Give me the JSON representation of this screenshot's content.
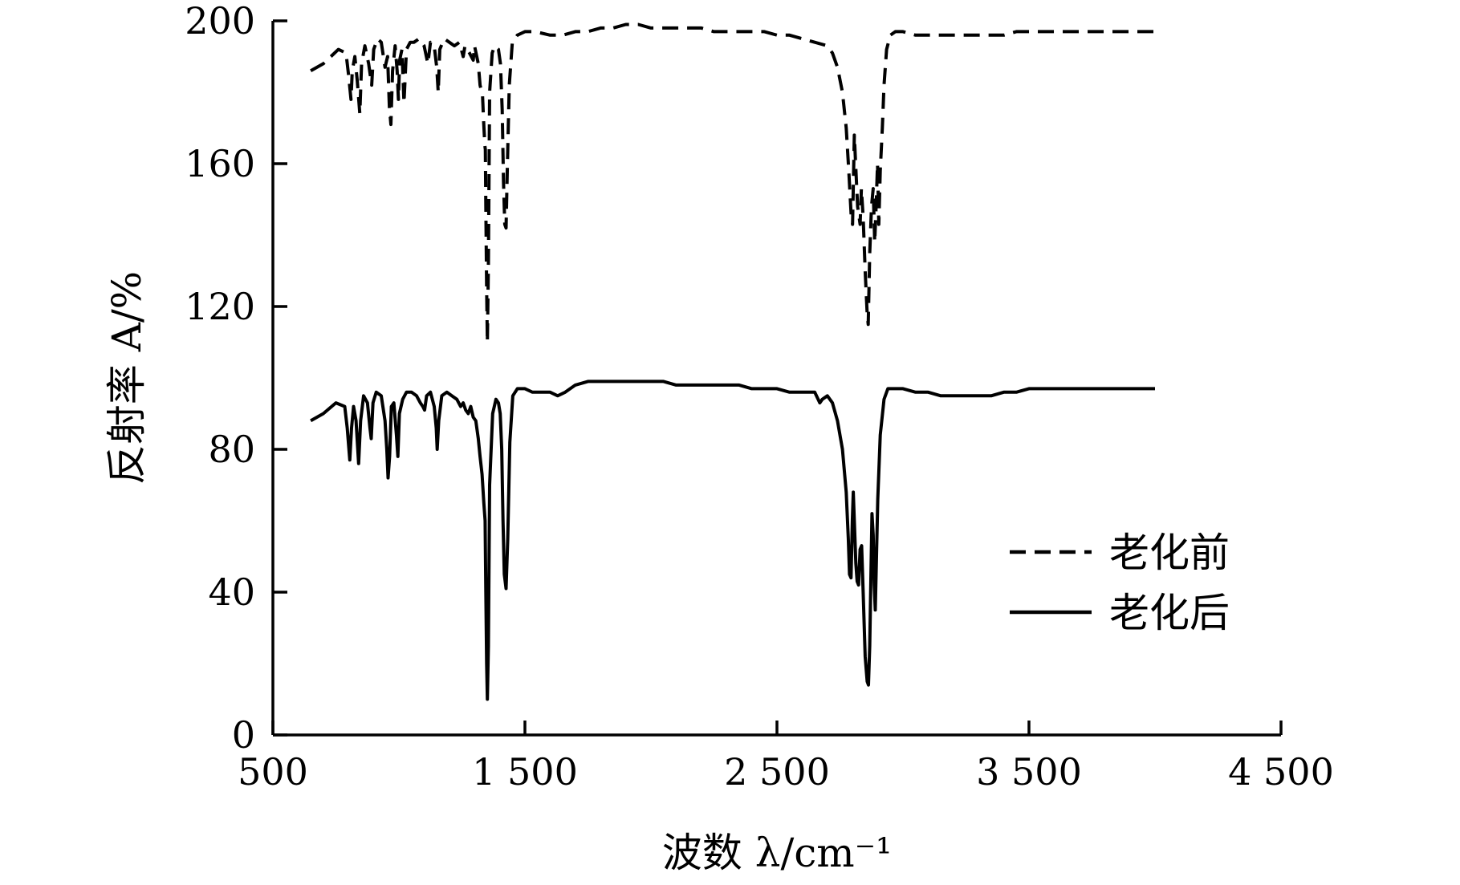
{
  "chart_data": {
    "type": "line",
    "xlabel": "波数 λ/cm⁻¹",
    "ylabel": "反射率 A/%",
    "xlim": [
      500,
      4500
    ],
    "ylim": [
      0,
      200
    ],
    "xticks": [
      500,
      1500,
      2500,
      3500,
      4500
    ],
    "xtick_labels": [
      "500",
      "1 500",
      "2 500",
      "3 500",
      "4 500"
    ],
    "yticks": [
      0,
      40,
      80,
      120,
      160,
      200
    ],
    "ytick_labels": [
      "0",
      "40",
      "80",
      "120",
      "160",
      "200"
    ],
    "grid": false,
    "legend_position": "lower-right",
    "series": [
      {
        "name": "老化前",
        "style": "dashed",
        "color": "#000000",
        "points": [
          [
            650,
            186
          ],
          [
            700,
            188
          ],
          [
            760,
            192
          ],
          [
            790,
            191
          ],
          [
            800,
            185
          ],
          [
            810,
            178
          ],
          [
            815,
            186
          ],
          [
            825,
            190
          ],
          [
            835,
            183
          ],
          [
            845,
            174
          ],
          [
            852,
            188
          ],
          [
            865,
            193
          ],
          [
            880,
            188
          ],
          [
            892,
            182
          ],
          [
            900,
            192
          ],
          [
            915,
            195
          ],
          [
            930,
            194
          ],
          [
            945,
            187
          ],
          [
            955,
            190
          ],
          [
            962,
            176
          ],
          [
            968,
            171
          ],
          [
            975,
            186
          ],
          [
            985,
            193
          ],
          [
            993,
            186
          ],
          [
            998,
            178
          ],
          [
            1003,
            189
          ],
          [
            1012,
            192
          ],
          [
            1020,
            177
          ],
          [
            1030,
            192
          ],
          [
            1045,
            194
          ],
          [
            1060,
            194
          ],
          [
            1080,
            195
          ],
          [
            1100,
            193
          ],
          [
            1115,
            188
          ],
          [
            1125,
            194
          ],
          [
            1140,
            193
          ],
          [
            1150,
            187
          ],
          [
            1156,
            180
          ],
          [
            1162,
            192
          ],
          [
            1180,
            195
          ],
          [
            1200,
            194
          ],
          [
            1220,
            193
          ],
          [
            1240,
            194
          ],
          [
            1255,
            190
          ],
          [
            1262,
            193
          ],
          [
            1280,
            191
          ],
          [
            1295,
            189
          ],
          [
            1300,
            193
          ],
          [
            1315,
            188
          ],
          [
            1322,
            182
          ],
          [
            1332,
            179
          ],
          [
            1336,
            172
          ],
          [
            1341,
            165
          ],
          [
            1343,
            164
          ],
          [
            1345,
            148
          ],
          [
            1348,
            125
          ],
          [
            1351,
            110
          ],
          [
            1355,
            132
          ],
          [
            1360,
            180
          ],
          [
            1370,
            191
          ],
          [
            1380,
            193
          ],
          [
            1395,
            192
          ],
          [
            1403,
            188
          ],
          [
            1410,
            175
          ],
          [
            1415,
            155
          ],
          [
            1420,
            143
          ],
          [
            1425,
            142
          ],
          [
            1430,
            158
          ],
          [
            1438,
            182
          ],
          [
            1450,
            194
          ],
          [
            1470,
            196
          ],
          [
            1500,
            197
          ],
          [
            1540,
            197
          ],
          [
            1600,
            196
          ],
          [
            1650,
            196
          ],
          [
            1700,
            197
          ],
          [
            1750,
            197
          ],
          [
            1800,
            198
          ],
          [
            1850,
            198
          ],
          [
            1900,
            199
          ],
          [
            1950,
            199
          ],
          [
            2000,
            198
          ],
          [
            2050,
            198
          ],
          [
            2100,
            198
          ],
          [
            2150,
            198
          ],
          [
            2200,
            198
          ],
          [
            2250,
            197
          ],
          [
            2300,
            197
          ],
          [
            2350,
            197
          ],
          [
            2400,
            197
          ],
          [
            2450,
            197
          ],
          [
            2500,
            196
          ],
          [
            2550,
            196
          ],
          [
            2600,
            195
          ],
          [
            2650,
            194
          ],
          [
            2700,
            193
          ],
          [
            2720,
            191
          ],
          [
            2740,
            187
          ],
          [
            2760,
            180
          ],
          [
            2775,
            170
          ],
          [
            2785,
            158
          ],
          [
            2795,
            145
          ],
          [
            2800,
            143
          ],
          [
            2807,
            168
          ],
          [
            2812,
            160
          ],
          [
            2820,
            148
          ],
          [
            2830,
            143
          ],
          [
            2835,
            153
          ],
          [
            2842,
            145
          ],
          [
            2850,
            130
          ],
          [
            2858,
            118
          ],
          [
            2862,
            115
          ],
          [
            2868,
            135
          ],
          [
            2875,
            148
          ],
          [
            2882,
            153
          ],
          [
            2888,
            138
          ],
          [
            2894,
            149
          ],
          [
            2899,
            160
          ],
          [
            2904,
            143
          ],
          [
            2910,
            158
          ],
          [
            2918,
            170
          ],
          [
            2925,
            182
          ],
          [
            2935,
            192
          ],
          [
            2950,
            196
          ],
          [
            2970,
            197
          ],
          [
            3000,
            197
          ],
          [
            3050,
            196
          ],
          [
            3100,
            196
          ],
          [
            3150,
            196
          ],
          [
            3200,
            196
          ],
          [
            3250,
            196
          ],
          [
            3300,
            196
          ],
          [
            3350,
            196
          ],
          [
            3400,
            196
          ],
          [
            3450,
            197
          ],
          [
            3500,
            197
          ],
          [
            3550,
            197
          ],
          [
            3600,
            197
          ],
          [
            3650,
            197
          ],
          [
            3700,
            197
          ],
          [
            3750,
            197
          ],
          [
            3800,
            197
          ],
          [
            3850,
            197
          ],
          [
            3900,
            197
          ],
          [
            3950,
            197
          ],
          [
            4000,
            197
          ]
        ]
      },
      {
        "name": "老化后",
        "style": "solid",
        "color": "#000000",
        "points": [
          [
            650,
            88
          ],
          [
            700,
            90
          ],
          [
            750,
            93
          ],
          [
            785,
            92
          ],
          [
            795,
            86
          ],
          [
            805,
            77
          ],
          [
            812,
            86
          ],
          [
            820,
            92
          ],
          [
            830,
            88
          ],
          [
            840,
            76
          ],
          [
            848,
            88
          ],
          [
            860,
            95
          ],
          [
            875,
            93
          ],
          [
            885,
            86
          ],
          [
            890,
            83
          ],
          [
            897,
            93
          ],
          [
            910,
            96
          ],
          [
            930,
            95
          ],
          [
            945,
            88
          ],
          [
            952,
            80
          ],
          [
            957,
            72
          ],
          [
            963,
            78
          ],
          [
            970,
            92
          ],
          [
            980,
            93
          ],
          [
            990,
            84
          ],
          [
            996,
            78
          ],
          [
            1002,
            90
          ],
          [
            1015,
            94
          ],
          [
            1030,
            96
          ],
          [
            1050,
            96
          ],
          [
            1070,
            95
          ],
          [
            1085,
            93
          ],
          [
            1095,
            92
          ],
          [
            1102,
            91
          ],
          [
            1110,
            95
          ],
          [
            1125,
            96
          ],
          [
            1140,
            92
          ],
          [
            1148,
            86
          ],
          [
            1152,
            80
          ],
          [
            1158,
            88
          ],
          [
            1170,
            95
          ],
          [
            1190,
            96
          ],
          [
            1210,
            95
          ],
          [
            1230,
            94
          ],
          [
            1245,
            92
          ],
          [
            1255,
            93
          ],
          [
            1265,
            91
          ],
          [
            1275,
            90
          ],
          [
            1285,
            92
          ],
          [
            1295,
            89
          ],
          [
            1305,
            88
          ],
          [
            1315,
            83
          ],
          [
            1322,
            78
          ],
          [
            1330,
            73
          ],
          [
            1337,
            65
          ],
          [
            1342,
            60
          ],
          [
            1345,
            40
          ],
          [
            1348,
            20
          ],
          [
            1351,
            10
          ],
          [
            1355,
            25
          ],
          [
            1360,
            70
          ],
          [
            1372,
            90
          ],
          [
            1385,
            94
          ],
          [
            1395,
            93
          ],
          [
            1402,
            90
          ],
          [
            1408,
            80
          ],
          [
            1413,
            60
          ],
          [
            1418,
            45
          ],
          [
            1425,
            41
          ],
          [
            1432,
            55
          ],
          [
            1440,
            82
          ],
          [
            1452,
            95
          ],
          [
            1470,
            97
          ],
          [
            1500,
            97
          ],
          [
            1530,
            96
          ],
          [
            1560,
            96
          ],
          [
            1600,
            96
          ],
          [
            1630,
            95
          ],
          [
            1660,
            96
          ],
          [
            1700,
            98
          ],
          [
            1750,
            99
          ],
          [
            1800,
            99
          ],
          [
            1850,
            99
          ],
          [
            1900,
            99
          ],
          [
            1950,
            99
          ],
          [
            2000,
            99
          ],
          [
            2050,
            99
          ],
          [
            2100,
            98
          ],
          [
            2150,
            98
          ],
          [
            2200,
            98
          ],
          [
            2250,
            98
          ],
          [
            2300,
            98
          ],
          [
            2350,
            98
          ],
          [
            2400,
            97
          ],
          [
            2450,
            97
          ],
          [
            2500,
            97
          ],
          [
            2550,
            96
          ],
          [
            2600,
            96
          ],
          [
            2650,
            96
          ],
          [
            2670,
            93
          ],
          [
            2680,
            94
          ],
          [
            2700,
            95
          ],
          [
            2720,
            93
          ],
          [
            2740,
            88
          ],
          [
            2760,
            80
          ],
          [
            2775,
            68
          ],
          [
            2783,
            55
          ],
          [
            2788,
            45
          ],
          [
            2794,
            44
          ],
          [
            2799,
            60
          ],
          [
            2803,
            68
          ],
          [
            2808,
            58
          ],
          [
            2813,
            48
          ],
          [
            2818,
            43
          ],
          [
            2824,
            42
          ],
          [
            2830,
            52
          ],
          [
            2836,
            53
          ],
          [
            2842,
            40
          ],
          [
            2850,
            22
          ],
          [
            2858,
            15
          ],
          [
            2863,
            14
          ],
          [
            2868,
            25
          ],
          [
            2873,
            45
          ],
          [
            2877,
            62
          ],
          [
            2882,
            56
          ],
          [
            2886,
            42
          ],
          [
            2890,
            35
          ],
          [
            2895,
            50
          ],
          [
            2900,
            66
          ],
          [
            2910,
            84
          ],
          [
            2925,
            94
          ],
          [
            2940,
            97
          ],
          [
            2960,
            97
          ],
          [
            3000,
            97
          ],
          [
            3050,
            96
          ],
          [
            3100,
            96
          ],
          [
            3150,
            95
          ],
          [
            3200,
            95
          ],
          [
            3250,
            95
          ],
          [
            3300,
            95
          ],
          [
            3350,
            95
          ],
          [
            3400,
            96
          ],
          [
            3450,
            96
          ],
          [
            3500,
            97
          ],
          [
            3550,
            97
          ],
          [
            3600,
            97
          ],
          [
            3650,
            97
          ],
          [
            3700,
            97
          ],
          [
            3750,
            97
          ],
          [
            3800,
            97
          ],
          [
            3850,
            97
          ],
          [
            3900,
            97
          ],
          [
            3950,
            97
          ],
          [
            4000,
            97
          ]
        ]
      }
    ]
  }
}
